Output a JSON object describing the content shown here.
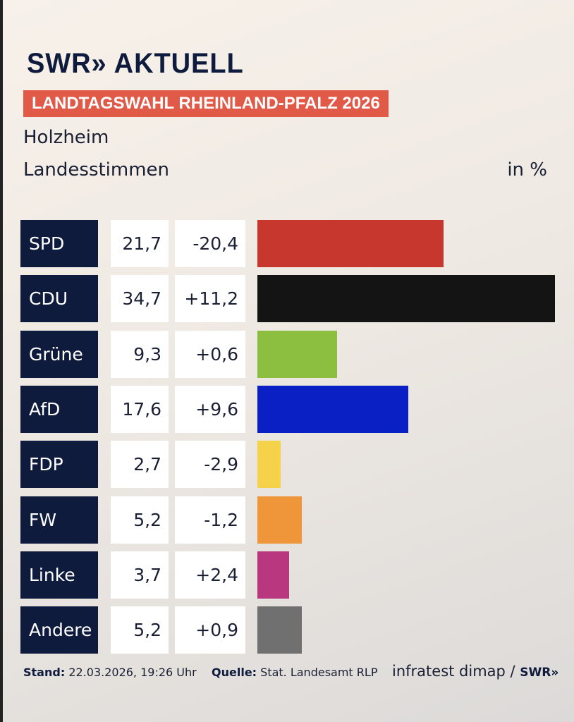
{
  "header": {
    "logo": "SWR» AKTUELL",
    "banner": "LANDTAGSWAHL RHEINLAND-PFALZ 2026",
    "place": "Holzheim",
    "subtitle": "Landesstimmen",
    "unit": "in %"
  },
  "chart_data": {
    "type": "bar",
    "orientation": "horizontal",
    "categories": [
      "SPD",
      "CDU",
      "Grüne",
      "AfD",
      "FDP",
      "FW",
      "Linke",
      "Andere"
    ],
    "values": [
      21.7,
      34.7,
      9.3,
      17.6,
      2.7,
      5.2,
      3.7,
      5.2
    ],
    "value_labels": [
      "21,7",
      "34,7",
      "9,3",
      "17,6",
      "2,7",
      "5,2",
      "3,7",
      "5,2"
    ],
    "diff_labels": [
      "-20,4",
      "+11,2",
      "+0,6",
      "+9,6",
      "-2,9",
      "-1,2",
      "+2,4",
      "+0,9"
    ],
    "colors": [
      "#c8372d",
      "#141414",
      "#8cbf3f",
      "#0a1fc4",
      "#f5d24a",
      "#f0963a",
      "#b8377f",
      "#707070"
    ],
    "grid": false
  },
  "footer": {
    "stand_label": "Stand:",
    "stand": "22.03.2026, 19:26 Uhr",
    "source_label": "Quelle:",
    "source": "Stat. Landesamt RLP",
    "credit": "infratest dimap / ",
    "credit_logo": "SWR»"
  }
}
